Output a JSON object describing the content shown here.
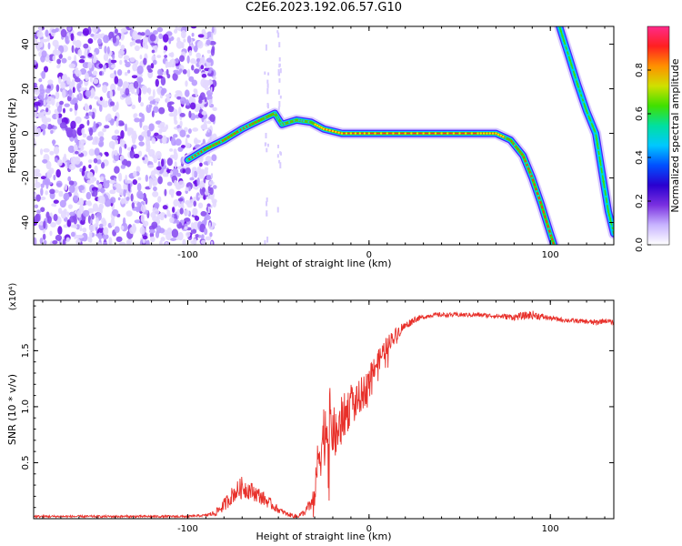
{
  "figure": {
    "title": "C2E6.2023.192.06.57.G10"
  },
  "chart_data": [
    {
      "type": "heatmap",
      "xlabel": "Height of straight line (km)",
      "ylabel": "Frequency (Hz)",
      "xlim": [
        -185,
        135
      ],
      "ylim": [
        -50,
        48
      ],
      "x_ticks": [
        -100,
        0,
        100
      ],
      "y_ticks": [
        -40,
        -20,
        0,
        20,
        40
      ],
      "colorbar": {
        "label": "Normalized spectral amplitude",
        "range": [
          0,
          1
        ],
        "ticks": [
          0.0,
          0.2,
          0.4,
          0.6,
          0.8
        ],
        "colors": [
          "#ffffff",
          "#c8b4ff",
          "#7a30e0",
          "#2a00d0",
          "#0050ff",
          "#00c8ff",
          "#00e0a0",
          "#40e000",
          "#d0e000",
          "#ff9000",
          "#ff2020",
          "#ff2a8a"
        ]
      },
      "noise_region": {
        "x": [
          -185,
          -90
        ],
        "amplitude": 0.2
      },
      "ridges": [
        {
          "name": "main",
          "points": [
            [
              -100,
              -12
            ],
            [
              -90,
              -7
            ],
            [
              -80,
              -3
            ],
            [
              -70,
              2
            ],
            [
              -60,
              6
            ],
            [
              -52,
              9
            ],
            [
              -48,
              4
            ],
            [
              -40,
              6
            ],
            [
              -32,
              5
            ],
            [
              -25,
              2
            ],
            [
              -15,
              0
            ],
            [
              0,
              0
            ],
            [
              20,
              0
            ],
            [
              40,
              0
            ],
            [
              60,
              0
            ],
            [
              70,
              0
            ],
            [
              78,
              -3
            ],
            [
              85,
              -10
            ],
            [
              90,
              -20
            ],
            [
              95,
              -32
            ],
            [
              100,
              -45
            ],
            [
              104,
              -55
            ]
          ]
        },
        {
          "name": "upper-right",
          "points": [
            [
              102,
              55
            ],
            [
              105,
              48
            ],
            [
              110,
              35
            ],
            [
              115,
              22
            ],
            [
              120,
              10
            ],
            [
              125,
              0
            ],
            [
              128,
              -15
            ],
            [
              132,
              -35
            ],
            [
              135,
              -45
            ]
          ]
        }
      ]
    },
    {
      "type": "line",
      "xlabel": "Height of straight line (km)",
      "ylabel": "SNR (10 * v/v)",
      "y_multiplier": "(x10⁴)",
      "xlim": [
        -185,
        135
      ],
      "ylim": [
        0,
        1.95
      ],
      "x_ticks": [
        -100,
        0,
        100
      ],
      "y_ticks": [
        0.5,
        1.0,
        1.5
      ],
      "y_tick_labels": [
        "0.5",
        "1.0",
        "1.5"
      ],
      "color": "#e8302a",
      "series": [
        {
          "x": [
            -185,
            -160,
            -140,
            -120,
            -100,
            -90,
            -85,
            -80,
            -75,
            -70,
            -65,
            -60,
            -55,
            -50,
            -45,
            -40,
            -35,
            -30,
            -28,
            -25,
            -22,
            -20,
            -18,
            -15,
            -12,
            -10,
            -8,
            -5,
            -2,
            0,
            2,
            5,
            8,
            10,
            12,
            15,
            18,
            20,
            25,
            30,
            35,
            40,
            50,
            60,
            70,
            80,
            90,
            100,
            110,
            120,
            125,
            130,
            135
          ],
          "values": [
            0.02,
            0.02,
            0.02,
            0.02,
            0.02,
            0.03,
            0.05,
            0.12,
            0.22,
            0.28,
            0.25,
            0.2,
            0.14,
            0.08,
            0.04,
            0.02,
            0.06,
            0.2,
            0.55,
            0.75,
            0.9,
            0.8,
            0.72,
            0.9,
            0.95,
            1.05,
            1.0,
            1.1,
            1.15,
            1.25,
            1.35,
            1.4,
            1.5,
            1.55,
            1.6,
            1.65,
            1.7,
            1.72,
            1.78,
            1.8,
            1.82,
            1.82,
            1.82,
            1.82,
            1.81,
            1.8,
            1.82,
            1.79,
            1.77,
            1.76,
            1.75,
            1.77,
            1.75
          ],
          "noise": [
            0.01,
            0.01,
            0.01,
            0.01,
            0.01,
            0.01,
            0.03,
            0.06,
            0.08,
            0.1,
            0.08,
            0.07,
            0.05,
            0.03,
            0.02,
            0.02,
            0.03,
            0.1,
            0.25,
            0.3,
            0.3,
            0.25,
            0.2,
            0.2,
            0.2,
            0.18,
            0.15,
            0.15,
            0.15,
            0.12,
            0.12,
            0.1,
            0.1,
            0.08,
            0.07,
            0.06,
            0.05,
            0.04,
            0.03,
            0.02,
            0.02,
            0.02,
            0.02,
            0.02,
            0.02,
            0.03,
            0.04,
            0.02,
            0.02,
            0.02,
            0.03,
            0.02,
            0.02
          ]
        }
      ]
    }
  ]
}
